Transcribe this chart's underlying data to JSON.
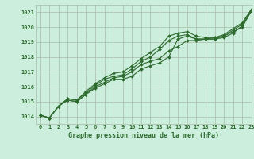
{
  "title": "Graphe pression niveau de la mer (hPa)",
  "bg_color": "#cceedd",
  "grid_color": "#aabbaa",
  "line_color": "#2d6a2d",
  "text_color": "#2d6a2d",
  "xlim": [
    -0.5,
    23
  ],
  "ylim": [
    1013.5,
    1021.5
  ],
  "yticks": [
    1014,
    1015,
    1016,
    1017,
    1018,
    1019,
    1020,
    1021
  ],
  "xticks": [
    0,
    1,
    2,
    3,
    4,
    5,
    6,
    7,
    8,
    9,
    10,
    11,
    12,
    13,
    14,
    15,
    16,
    17,
    18,
    19,
    20,
    21,
    22,
    23
  ],
  "series": [
    [
      1014.1,
      1013.9,
      1014.7,
      1015.1,
      1015.0,
      1015.5,
      1015.9,
      1016.2,
      1016.5,
      1016.5,
      1016.7,
      1017.2,
      1017.4,
      1017.6,
      1018.0,
      1019.2,
      1019.4,
      1019.2,
      1019.2,
      1019.2,
      1019.3,
      1019.6,
      1020.1,
      1021.1
    ],
    [
      1014.1,
      1013.9,
      1014.7,
      1015.1,
      1015.0,
      1015.5,
      1016.0,
      1016.3,
      1016.6,
      1016.7,
      1017.0,
      1017.5,
      1017.7,
      1017.9,
      1018.4,
      1018.7,
      1019.1,
      1019.1,
      1019.2,
      1019.3,
      1019.4,
      1019.8,
      1020.2,
      1021.2
    ],
    [
      1014.1,
      1013.9,
      1014.7,
      1015.2,
      1015.1,
      1015.6,
      1016.1,
      1016.5,
      1016.7,
      1016.8,
      1017.2,
      1017.7,
      1018.0,
      1018.5,
      1019.1,
      1019.4,
      1019.5,
      1019.2,
      1019.2,
      1019.2,
      1019.4,
      1019.7,
      1020.0,
      1021.1
    ],
    [
      1014.1,
      1013.9,
      1014.7,
      1015.2,
      1015.1,
      1015.7,
      1016.2,
      1016.6,
      1016.9,
      1017.0,
      1017.4,
      1017.9,
      1018.3,
      1018.7,
      1019.4,
      1019.6,
      1019.7,
      1019.4,
      1019.3,
      1019.3,
      1019.5,
      1019.9,
      1020.3,
      1021.2
    ]
  ],
  "marker": "D",
  "markersize": 2.0,
  "linewidth": 0.8,
  "tick_fontsize": 5.0,
  "xlabel_fontsize": 6.0
}
